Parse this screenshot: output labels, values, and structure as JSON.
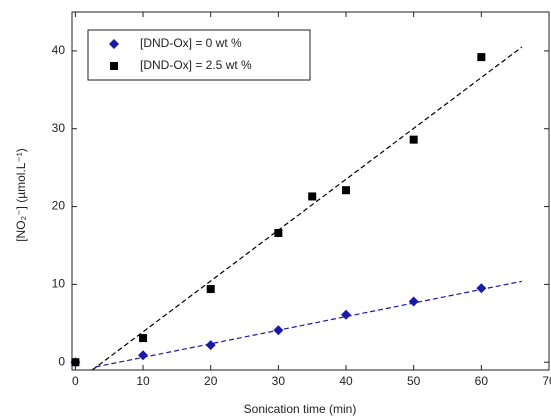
{
  "chart_data": {
    "type": "scatter",
    "xlabel": "Sonication time (min)",
    "ylabel": "[NO₂⁻] (µmol.L⁻¹)",
    "xlim": [
      -0.5,
      70
    ],
    "xticks": [
      0,
      10,
      20,
      30,
      40,
      50,
      60,
      70
    ],
    "ylim": [
      -1,
      45
    ],
    "yticks": [
      0,
      10,
      20,
      30,
      40
    ],
    "legend": "upper left",
    "series": [
      {
        "name": "[DND-Ox] = 0 wt %",
        "color": "#1a1aa8",
        "marker": "diamond",
        "x": [
          0,
          10,
          20,
          30,
          40,
          50,
          60
        ],
        "values": [
          0,
          0.9,
          2.2,
          4.1,
          6.1,
          7.8,
          9.5
        ],
        "fit": {
          "x": [
            3,
            66
          ],
          "values": [
            -0.6,
            10.4
          ]
        }
      },
      {
        "name": "[DND-Ox] = 2.5 wt %",
        "color": "#000000",
        "marker": "square",
        "x": [
          0,
          10,
          20,
          30,
          35,
          40,
          50,
          60
        ],
        "values": [
          0,
          3.1,
          9.4,
          16.6,
          21.3,
          22.1,
          28.6,
          39.2
        ],
        "fit": {
          "x": [
            2.5,
            66
          ],
          "values": [
            -1,
            40.5
          ]
        }
      }
    ]
  }
}
